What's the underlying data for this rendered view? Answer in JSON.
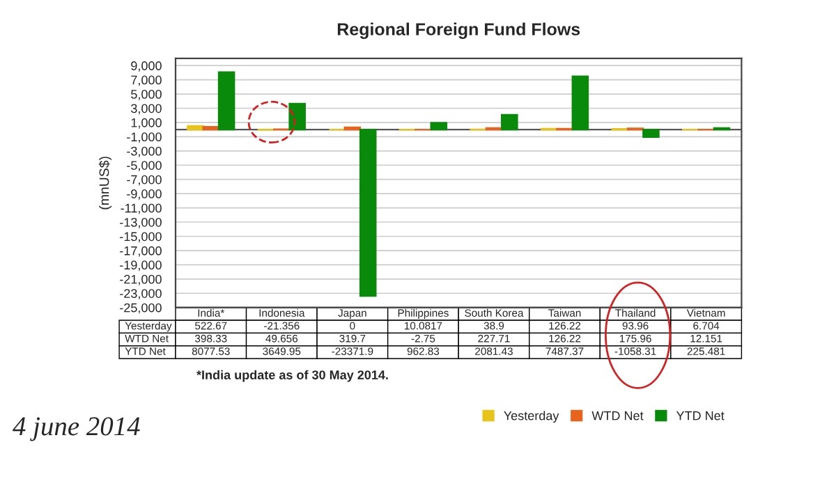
{
  "chart_data": {
    "type": "bar",
    "title": "Regional Foreign Fund Flows",
    "ylabel": "(mnUS$)",
    "categories": [
      "India*",
      "Indonesia",
      "Japan",
      "Philippines",
      "South Korea",
      "Taiwan",
      "Thailand",
      "Vietnam"
    ],
    "series": [
      {
        "name": "Yesterday",
        "color": "#e8c31a",
        "values": [
          522.67,
          -21.356,
          0,
          10.0817,
          38.9,
          126.22,
          93.96,
          6.704
        ]
      },
      {
        "name": "WTD Net",
        "color": "#e8641e",
        "values": [
          398.33,
          49.656,
          319.7,
          -2.75,
          227.71,
          126.22,
          175.96,
          12.151
        ]
      },
      {
        "name": "YTD Net",
        "color": "#0a8a0a",
        "values": [
          8077.53,
          3649.95,
          -23371.9,
          962.83,
          2081.43,
          7487.37,
          -1058.31,
          225.481
        ]
      }
    ],
    "ylim": [
      -25000,
      10000
    ],
    "yticks": [
      {
        "value": -25000,
        "label": "-25,000"
      },
      {
        "value": -23000,
        "label": "-23,000"
      },
      {
        "value": -21000,
        "label": "-21,000"
      },
      {
        "value": -19000,
        "label": "-19,000"
      },
      {
        "value": -17000,
        "label": "-17,000"
      },
      {
        "value": -15000,
        "label": "-15,000"
      },
      {
        "value": -13000,
        "label": "-13,000"
      },
      {
        "value": -11000,
        "label": "-11,000"
      },
      {
        "value": -9000,
        "label": "-9,000"
      },
      {
        "value": -7000,
        "label": "-7,000"
      },
      {
        "value": -5000,
        "label": "-5,000"
      },
      {
        "value": -3000,
        "label": "-3,000"
      },
      {
        "value": -1000,
        "label": "-1,000"
      },
      {
        "value": 1000,
        "label": "1,000"
      },
      {
        "value": 3000,
        "label": "3,000"
      },
      {
        "value": 5000,
        "label": "5,000"
      },
      {
        "value": 7000,
        "label": "7,000"
      },
      {
        "value": 9000,
        "label": "9,000"
      }
    ],
    "grid": "y",
    "legend": "bottom right",
    "data_labels": true,
    "annotations": [
      "*India update as of 30 May 2014.",
      "4 june 2014"
    ]
  }
}
